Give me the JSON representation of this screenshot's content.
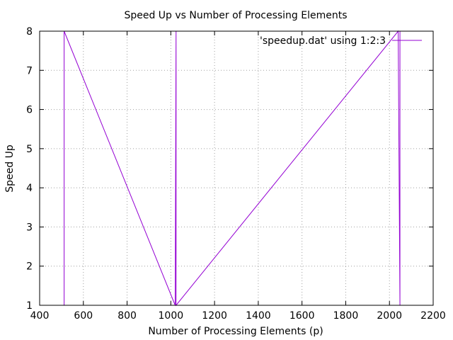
{
  "chart_data": {
    "type": "line",
    "title": "Speed Up vs Number of Processing Elements",
    "xlabel": "Number of Processing Elements (p)",
    "ylabel": "Speed Up",
    "xlim": [
      400,
      2200
    ],
    "ylim": [
      1,
      8
    ],
    "xticks": [
      400,
      600,
      800,
      1000,
      1200,
      1400,
      1600,
      1800,
      2000,
      2200
    ],
    "yticks": [
      1,
      2,
      3,
      4,
      5,
      6,
      7,
      8
    ],
    "grid": true,
    "legend_position": "top-right",
    "series": [
      {
        "name": "'speedup.dat' using 1:2:3",
        "color": "#9400d3",
        "x": [
          512,
          512,
          1020,
          1024,
          1024,
          2040,
          2048,
          2048
        ],
        "y": [
          1,
          8,
          1,
          8,
          1,
          8,
          1,
          8
        ]
      }
    ]
  }
}
